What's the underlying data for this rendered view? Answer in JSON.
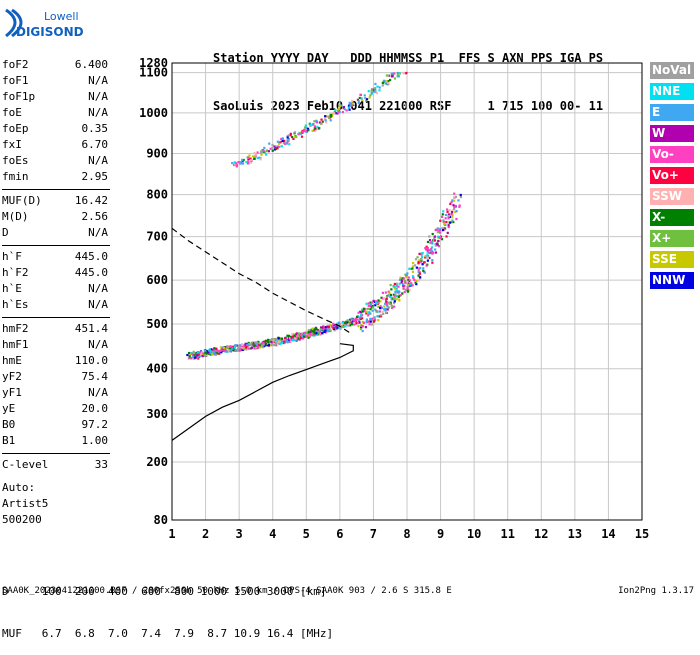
{
  "logo": {
    "line1": "Lowell",
    "line2": "DIGISONDE"
  },
  "header": {
    "row1": "Station YYYY DAY   DDD HHMMSS P1  FFS S AXN PPS IGA PS",
    "row2": "SaoLuis 2023 Feb10 041 221000 RSF     1 715 100 00- 11"
  },
  "params": {
    "group1": [
      {
        "k": "foF2",
        "v": "6.400"
      },
      {
        "k": "foF1",
        "v": "N/A"
      },
      {
        "k": "foF1p",
        "v": "N/A"
      },
      {
        "k": "foE",
        "v": "N/A"
      },
      {
        "k": "foEp",
        "v": "0.35"
      },
      {
        "k": "fxI",
        "v": "6.70"
      },
      {
        "k": "foEs",
        "v": "N/A"
      },
      {
        "k": "fmin",
        "v": "2.95"
      }
    ],
    "group2": [
      {
        "k": "MUF(D)",
        "v": "16.42"
      },
      {
        "k": "M(D)",
        "v": "2.56"
      },
      {
        "k": "D",
        "v": "N/A"
      }
    ],
    "group3": [
      {
        "k": "h`F",
        "v": "445.0"
      },
      {
        "k": "h`F2",
        "v": "445.0"
      },
      {
        "k": "h`E",
        "v": "N/A"
      },
      {
        "k": "h`Es",
        "v": "N/A"
      }
    ],
    "group4": [
      {
        "k": "hmF2",
        "v": "451.4"
      },
      {
        "k": "hmF1",
        "v": "N/A"
      },
      {
        "k": "hmE",
        "v": "110.0"
      },
      {
        "k": "yF2",
        "v": "75.4"
      },
      {
        "k": "yF1",
        "v": "N/A"
      },
      {
        "k": "yE",
        "v": "20.0"
      },
      {
        "k": "B0",
        "v": "97.2"
      },
      {
        "k": "B1",
        "v": "1.00"
      }
    ],
    "group5": [
      {
        "k": "C-level",
        "v": "33"
      }
    ],
    "auto": [
      "Auto:",
      "Artist5",
      "500200"
    ]
  },
  "legend": [
    {
      "label": "NoVal",
      "color": "#a0a0a0"
    },
    {
      "label": "NNE",
      "color": "#00e0f0"
    },
    {
      "label": "E",
      "color": "#40a8f0"
    },
    {
      "label": "W",
      "color": "#b000b0"
    },
    {
      "label": "Vo-",
      "color": "#ff40c0"
    },
    {
      "label": "Vo+",
      "color": "#ff0040"
    },
    {
      "label": "SSW",
      "color": "#ffb0b0"
    },
    {
      "label": "X-",
      "color": "#008000"
    },
    {
      "label": "X+",
      "color": "#70c040"
    },
    {
      "label": "SSE",
      "color": "#c8c800"
    },
    {
      "label": "NNW",
      "color": "#0000e0"
    }
  ],
  "chart_data": {
    "type": "scatter",
    "xlim": [
      1,
      15
    ],
    "ylim": [
      80,
      1280
    ],
    "x_ticks": [
      1,
      2,
      3,
      4,
      5,
      6,
      7,
      8,
      9,
      10,
      11,
      12,
      13,
      14,
      15
    ],
    "y_ticks": [
      80,
      200,
      300,
      400,
      500,
      600,
      700,
      800,
      900,
      1000,
      1100,
      1280
    ],
    "y_scale": "nonlinear",
    "y_axis_map": [
      [
        80,
        0
      ],
      [
        200,
        0.127
      ],
      [
        300,
        0.232
      ],
      [
        400,
        0.331
      ],
      [
        500,
        0.429
      ],
      [
        600,
        0.525
      ],
      [
        700,
        0.62
      ],
      [
        800,
        0.712
      ],
      [
        900,
        0.802
      ],
      [
        1000,
        0.891
      ],
      [
        1100,
        0.979
      ],
      [
        1280,
        1
      ]
    ],
    "grid": true,
    "profile_solid": [
      [
        1.0,
        245
      ],
      [
        1.5,
        270
      ],
      [
        2.0,
        295
      ],
      [
        2.5,
        315
      ],
      [
        3.0,
        330
      ],
      [
        3.5,
        350
      ],
      [
        4.0,
        370
      ],
      [
        4.5,
        385
      ],
      [
        5.0,
        398
      ],
      [
        5.5,
        412
      ],
      [
        6.0,
        425
      ],
      [
        6.4,
        440
      ],
      [
        6.4,
        452
      ],
      [
        6.0,
        456
      ]
    ],
    "profile_dashed": [
      [
        1.0,
        720
      ],
      [
        1.5,
        690
      ],
      [
        2.0,
        665
      ],
      [
        2.5,
        640
      ],
      [
        3.0,
        615
      ],
      [
        3.5,
        595
      ],
      [
        4.0,
        570
      ],
      [
        4.5,
        550
      ],
      [
        5.0,
        530
      ],
      [
        5.5,
        512
      ],
      [
        6.0,
        495
      ],
      [
        6.3,
        480
      ]
    ],
    "traces": [
      {
        "name": "o-trace lower",
        "points": [
          [
            1.5,
            430
          ],
          [
            2.0,
            438
          ],
          [
            2.5,
            445
          ],
          [
            3.0,
            450
          ],
          [
            3.5,
            455
          ],
          [
            4.0,
            462
          ],
          [
            4.5,
            470
          ],
          [
            5.0,
            480
          ],
          [
            5.5,
            490
          ],
          [
            6.0,
            500
          ],
          [
            6.5,
            510
          ],
          [
            7.0,
            530
          ],
          [
            7.5,
            560
          ],
          [
            8.0,
            600
          ],
          [
            8.5,
            650
          ],
          [
            9.0,
            720
          ],
          [
            9.5,
            790
          ]
        ]
      },
      {
        "name": "upper band",
        "points": [
          [
            2.8,
            870
          ],
          [
            3.2,
            885
          ],
          [
            3.6,
            900
          ],
          [
            4.0,
            920
          ],
          [
            4.4,
            935
          ],
          [
            4.8,
            955
          ],
          [
            5.2,
            970
          ],
          [
            5.6,
            990
          ],
          [
            6.0,
            1010
          ],
          [
            6.5,
            1030
          ],
          [
            7.0,
            1060
          ],
          [
            7.5,
            1090
          ],
          [
            7.9,
            1110
          ]
        ]
      }
    ]
  },
  "footer": {
    "d_row": "D     100  200  400  600  800 1000 1500 3000 [km]",
    "muf_row": "MUF   6.7  6.8  7.0  7.4  7.9  8.7 10.9 16.4 [MHz]",
    "info": "SAA0K_2023041221000.RSF / 280fx256h 50 kHz 5.0 km / DPS-4 SAA0K 903 / 2.6 S 315.8 E",
    "version": "Ion2Png 1.3.17"
  }
}
